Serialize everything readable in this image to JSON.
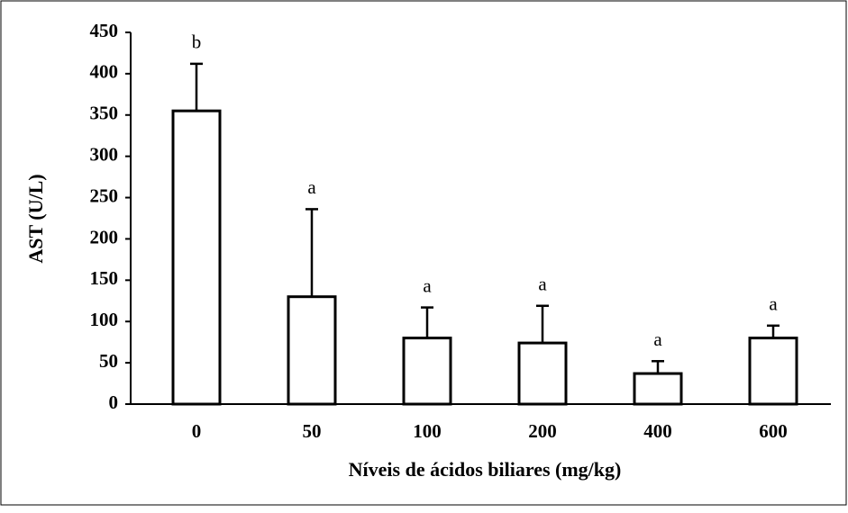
{
  "chart_data": {
    "type": "bar",
    "y_label": "AST (U/L)",
    "x_label": "Níveis de ácidos biliares (mg/kg)",
    "categories": [
      "0",
      "50",
      "100",
      "200",
      "400",
      "600"
    ],
    "values": [
      355,
      130,
      80,
      74,
      37,
      80
    ],
    "errors": [
      57,
      106,
      37,
      45,
      15,
      15
    ],
    "annotations": [
      "b",
      "a",
      "a",
      "a",
      "a",
      "a"
    ],
    "color": "#ffffff",
    "ylim": [
      0,
      450
    ],
    "yticks": [
      0,
      50,
      100,
      150,
      200,
      250,
      300,
      350,
      400,
      450
    ],
    "grid": false
  }
}
